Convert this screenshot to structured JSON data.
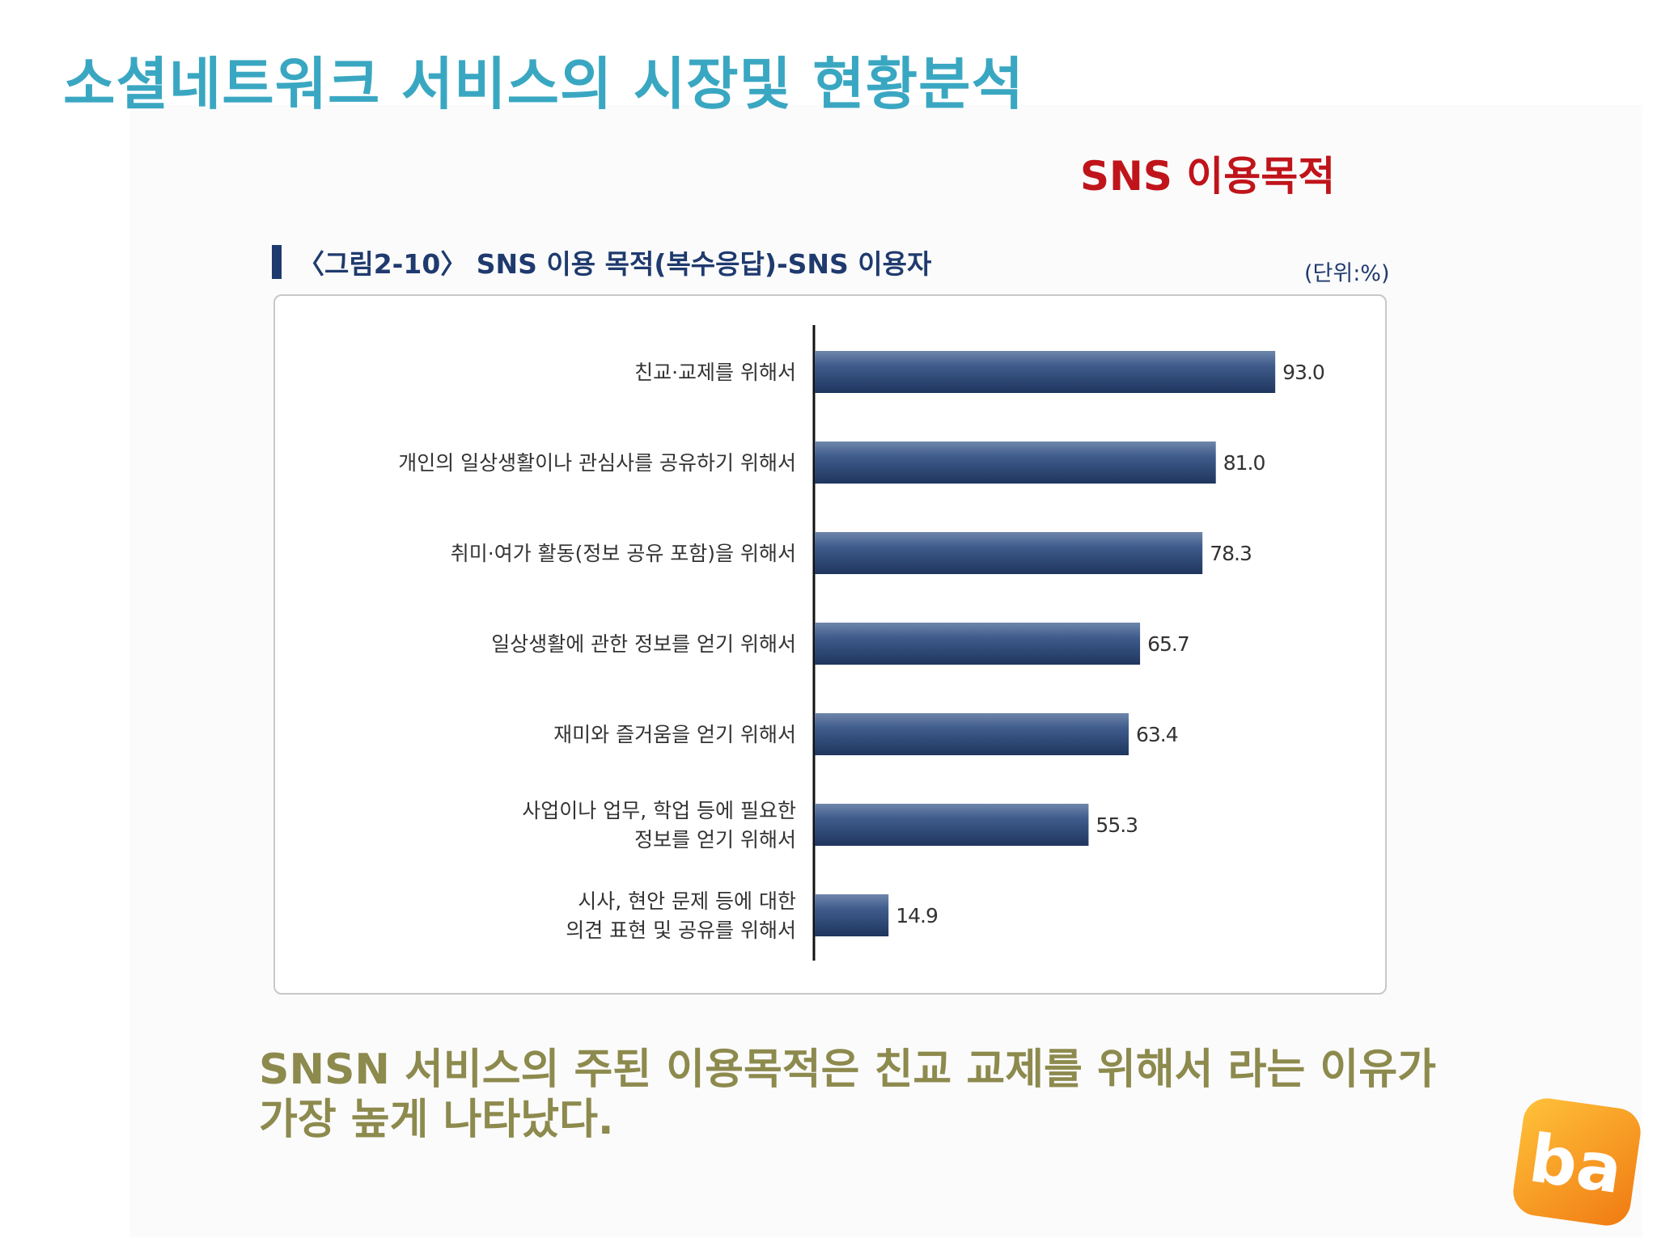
{
  "slide": {
    "title": "소셜네트워크 서비스의 시장및 현황분석",
    "section_title": "SNS 이용목적",
    "figure_caption": "〈그림2-10〉 SNS 이용 목적(복수응답)-SNS 이용자",
    "unit": "(단위:%)",
    "summary": "SNSN 서비스의 주된 이용목적은 친교 교제를 위해서 라는 이유가 가장 높게 나타났다.",
    "logo_text": "ba"
  },
  "colors": {
    "title": "#3aa7c2",
    "section_title": "#c0141b",
    "bar": "#2f4a78",
    "summary": "#8d8a4e",
    "logo": "#f5931e"
  },
  "chart_data": {
    "type": "bar",
    "orientation": "horizontal",
    "categories": [
      [
        "친교·교제를 위해서"
      ],
      [
        "개인의 일상생활이나 관심사를 공유하기 위해서"
      ],
      [
        "취미·여가 활동(정보 공유 포함)을 위해서"
      ],
      [
        "일상생활에 관한 정보를 얻기 위해서"
      ],
      [
        "재미와 즐거움을 얻기 위해서"
      ],
      [
        "사업이나 업무, 학업 등에 필요한",
        "정보를 얻기 위해서"
      ],
      [
        "시사, 현안 문제 등에 대한",
        "의견 표현 및 공유를 위해서"
      ]
    ],
    "values": [
      93.0,
      81.0,
      78.3,
      65.7,
      63.4,
      55.3,
      14.9
    ],
    "value_labels": [
      "93.0",
      "81.0",
      "78.3",
      "65.7",
      "63.4",
      "55.3",
      "14.9"
    ],
    "xlim": [
      0,
      100
    ],
    "grid": false,
    "legend": false
  }
}
